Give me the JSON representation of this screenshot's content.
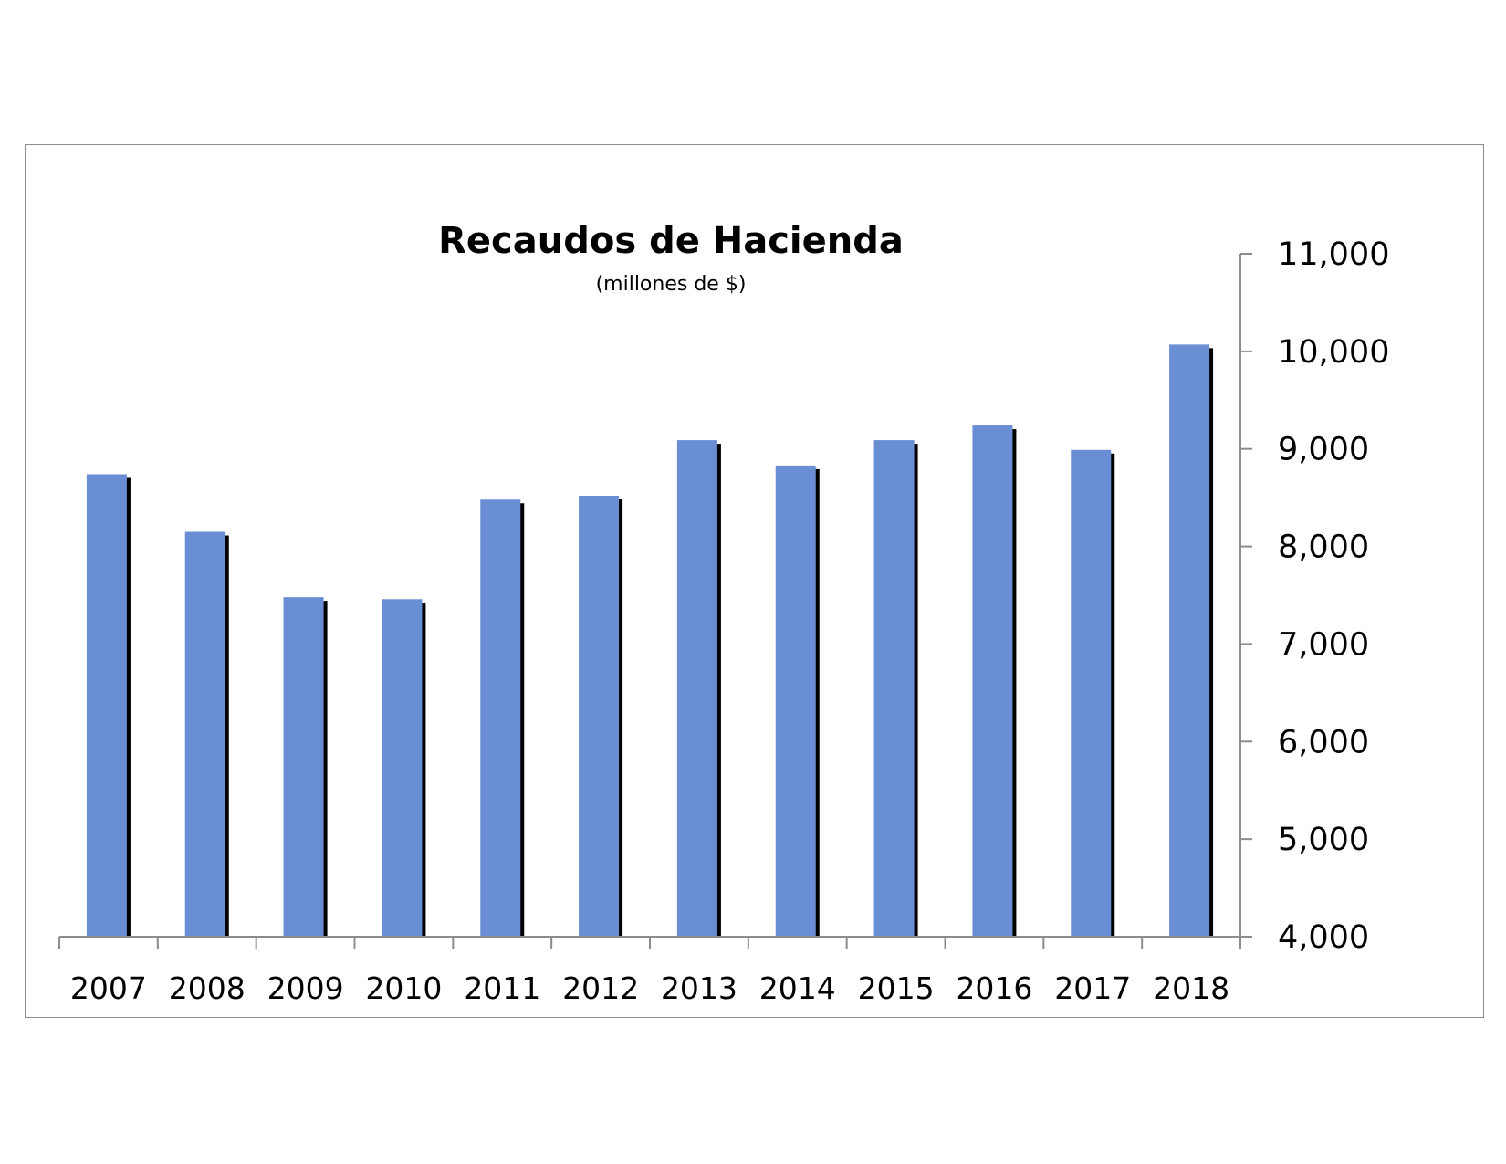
{
  "chart_data": {
    "type": "bar",
    "title": "Recaudos de Hacienda",
    "subtitle": "(millones de $)",
    "xlabel": "",
    "ylabel": "",
    "categories": [
      "2007",
      "2008",
      "2009",
      "2010",
      "2011",
      "2012",
      "2013",
      "2014",
      "2015",
      "2016",
      "2017",
      "2018"
    ],
    "series": [
      {
        "values": [
          8740,
          8150,
          7480,
          7460,
          8480,
          8520,
          9090,
          8830,
          9090,
          9240,
          8990,
          10070
        ]
      }
    ],
    "ylim": [
      4000,
      11000
    ],
    "yticks": [
      4000,
      5000,
      6000,
      7000,
      8000,
      9000,
      10000,
      11000
    ],
    "ytick_labels": [
      "4,000",
      "5,000",
      "6,000",
      "7,000",
      "8,000",
      "9,000",
      "10,000",
      "11,000"
    ],
    "y_axis_position": "right",
    "grid": false,
    "legend": "none",
    "bar_color": "#6a8ed3",
    "shadow_color": "#000000",
    "axis_color": "#8c8c8c"
  }
}
